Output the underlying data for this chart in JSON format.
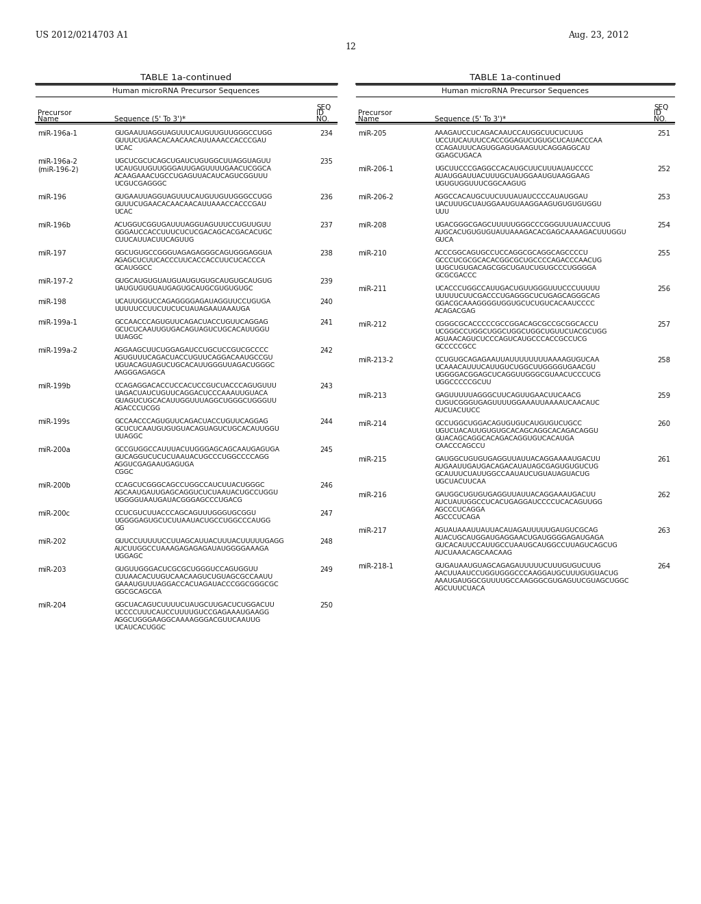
{
  "bg_color": "#ffffff",
  "page_header_left": "US 2012/0214703 A1",
  "page_header_right": "Aug. 23, 2012",
  "page_number": "12",
  "table_title": "TABLE 1a-continued",
  "subtitle": "Human microRNA Precursor Sequences",
  "left_entries": [
    {
      "name": [
        "miR-196a-1"
      ],
      "seq": [
        "GUGAAUUAGGUAGUUUCAUGUUGUUGGGCCUGG",
        "GUUUCUGAACACAACAACAUUAAACCACCCGAU",
        "UCAC"
      ],
      "seqno": "234"
    },
    {
      "name": [
        "miR-196a-2",
        "(miR-196-2)"
      ],
      "seq": [
        "UGCUCGCUCAGCUGAUCUGUGGCUUAGGUAGUU",
        "UCAUGUUGUUGGGAUUGAGUUUUGAACUCGGCA",
        "ACAAGAAACUGCCUGAGUUACAUCAGUCGGUUU",
        "UCGUCGAGGGC"
      ],
      "seqno": "235"
    },
    {
      "name": [
        "miR-196"
      ],
      "seq": [
        "GUGAAUUAGGUAGUUUCAUGUUGUUGGGCCUGG",
        "GUUUCUGAACACAACAACAUUAAACCACCCGAU",
        "UCAC"
      ],
      "seqno": "236"
    },
    {
      "name": [
        "miR-196b"
      ],
      "seq": [
        "ACUGGUCGGUGAUUUAGGUAGUUUCCUGUUGUU",
        "GGGAUCCACCUUUCUCUCGACAGCACGACACUGC",
        "CUUCAUUACUUCAGUUG"
      ],
      "seqno": "237"
    },
    {
      "name": [
        "miR-197"
      ],
      "seq": [
        "GGCUGUGCCGGGUAGAGAGGGCAGUGGGAGGUA",
        "AGAGCUCUUCACCCUUCACCACCUUCUCACCCA",
        "GCAUGGCC"
      ],
      "seqno": "238"
    },
    {
      "name": [
        "miR-197-2"
      ],
      "seq": [
        "GUGCAUGUGUAUGUAUGUGUGCAUGUGCAUGUG",
        "UAUGUGUGUAUGAGUGCAUGCGUGUGUGC"
      ],
      "seqno": "239"
    },
    {
      "name": [
        "miR-198"
      ],
      "seq": [
        "UCAUUGGUCCAGAGGGGAGAUAGGUUCCUGUGA",
        "UUUUUCCUUCUUCUCUAUAGAAUAAAUGA"
      ],
      "seqno": "240"
    },
    {
      "name": [
        "miR-199a-1"
      ],
      "seq": [
        "GCCAACCCAGUGUUCAGACUACCUGUUCAGGAG",
        "GCUCUCAAUUGUGACAGUAGUCUGCACAUUGGU",
        "UUAGGC"
      ],
      "seqno": "241"
    },
    {
      "name": [
        "miR-199a-2"
      ],
      "seq": [
        "AGGAAGCUUCUGGAGAUCCUGCUCCGUCGCCCC",
        "AGUGUUUCAGACUACCUGUUCAGGACAAUGCCGU",
        "UGUACAGUAGUCUGCACAUUGGGUUAGACUGGGC",
        "AAGGGAGAGCA"
      ],
      "seqno": "242"
    },
    {
      "name": [
        "miR-199b"
      ],
      "seq": [
        "CCAGAGGACACCUCCACUCCGUCUACCCAGUGUUU",
        "UAGACUAUCUGUUCAGGACUCCCAAAUUGUACA",
        "GUAGUCUGCACAUUGGUUUAGGCUGGGCUGGGUU",
        "AGACCCUCGG"
      ],
      "seqno": "243"
    },
    {
      "name": [
        "miR-199s"
      ],
      "seq": [
        "GCCAACCCAGUGUUCAGACUACCUGUUCAGGAG",
        "GCUCUCAAUGUGUGUACAGUAGUCUGCACAUUGGU",
        "UUAGGC"
      ],
      "seqno": "244"
    },
    {
      "name": [
        "miR-200a"
      ],
      "seq": [
        "GCCGUGGCCAUUUACUUGGGAGCAGCAAUGAGUGA",
        "GUCAGGUCUCUCUAAUACUGCCCUGGCCCCAGG",
        "AGGUCGAGAAUGAGUGA",
        "CGGC"
      ],
      "seqno": "245"
    },
    {
      "name": [
        "miR-200b"
      ],
      "seq": [
        "CCAGCUCGGGCAGCCUGGCCAUCUUACUGGGC",
        "AGCAAUGAUUGAGCAGGUCUCUAAUACUGCCUGGU",
        "UGGGGUAAUGAUACGGGAGCCCUGACG"
      ],
      "seqno": "246"
    },
    {
      "name": [
        "miR-200c"
      ],
      "seq": [
        "CCUCGUCUUACCCAGCAGUUUGGGUGCGGU",
        "UGGGGAGUGCUCUUAAUACUGCCUGGCCCAUGG",
        "GG"
      ],
      "seqno": "247"
    },
    {
      "name": [
        "miR-202"
      ],
      "seq": [
        "GUUCCUUUUUCCUUAGCAUUACUUUACUUUUUGAGG",
        "AUCUUGGCCUAAAGAGAGAGAUAUGGGGAAAGA",
        "UGGAGC"
      ],
      "seqno": "248"
    },
    {
      "name": [
        "miR-203"
      ],
      "seq": [
        "GUGUUGGGACUCGCGCUGGGUCCAGUGGUU",
        "CUUAACACUUGUCAACAAGUCUGUAGCGCCAAUU",
        "GAAAUGUUUAGGACCACUAGAUACCCGGCGGGCGC",
        "GGCGCAGCGA"
      ],
      "seqno": "249"
    },
    {
      "name": [
        "miR-204"
      ],
      "seq": [
        "GGCUACAGUCUUUUCUAUGCUUGACUCUGGACUU",
        "UCCCCUUUCAUCCUUUUGUCCGAGAAAUGAAGG",
        "AGGCUGGGAAGGCAAAAGGGACGUUCAAUUG",
        "UCAUCACUGGC"
      ],
      "seqno": "250"
    }
  ],
  "right_entries": [
    {
      "name": [
        "miR-205"
      ],
      "seq": [
        "AAAGAUCCUCAGACAAUCCAUGGCUUCUCUUG",
        "UCCUUCAUUUCCACCGGAGUCUGUGCUCAUACCCAA",
        "CCAGAUUUCAGUGGAGUGAAGUUCAGGAGGCAU",
        "GGAGCUGACA"
      ],
      "seqno": "251"
    },
    {
      "name": [
        "miR-206-1"
      ],
      "seq": [
        "UGCUUCCCGAGGCCACAUGCUUCUUUAUAUCCCC",
        "AUAUGGAUUACUUUGCUAUGGAAUGUAAGGAAG",
        "UGUGUGGUUUCGGCAAGUG"
      ],
      "seqno": "252"
    },
    {
      "name": [
        "miR-206-2"
      ],
      "seq": [
        "AGGCCACAUGCUUCUUUAUAUCCCCAUAUGGAU",
        "UACUUUGCUAUGGAAUGUAAGGAAGUGUGUGUGGU",
        "UUU"
      ],
      "seqno": "253"
    },
    {
      "name": [
        "miR-208"
      ],
      "seq": [
        "UGACGGGCGAGCUUUUUGGGCCCGGGUUUAUACCUUG",
        "AUGCACUGUGUGUAUUAAAGACACGAGCAAAAGACUUUGGU",
        "GUCA"
      ],
      "seqno": "254"
    },
    {
      "name": [
        "miR-210"
      ],
      "seq": [
        "ACCCGGCAGUGCCUCCAGGCGCAGGCAGCCCCU",
        "GCCCUCGCGCACACGGCGCUGCCCCAGACCCAACUG",
        "UUGCUGUGACAGCGGCUGAUCUGUGCCCUGGGGA",
        "GCGCGACCC"
      ],
      "seqno": "255"
    },
    {
      "name": [
        "miR-211"
      ],
      "seq": [
        "UCACCCUGGCCAUUGACUGUUGGGUUUCCCUUUUU",
        "UUUUUCUUCGACCCUGAGGGCUCUGAGCAGGGCAG",
        "GGACGCAAAGGGGUGGUGCUCUGUCACAAUCCCC",
        "ACAGACGAG"
      ],
      "seqno": "256"
    },
    {
      "name": [
        "miR-212"
      ],
      "seq": [
        "CGGGCGCACCCCCGCCGGACAGCGCCGCGGCACCU",
        "UCGGGCCUGGCUGGCUGGCUGGCUGUUCUACGCUGG",
        "AGUAACAGUCUCCCAGUCAUGCCCACCGCCUCG",
        "GCCCCCGCC"
      ],
      "seqno": "257"
    },
    {
      "name": [
        "miR-213-2"
      ],
      "seq": [
        "CCUGUGCAGAGAAUUAUUUUUUUUAAAAGUGUCAA",
        "UCAAACAUUUCAUUGUCUGGCUUGGGGUGAACGU",
        "UGGGGACGGAGCUCAGGUUGGGCGUAACUCCCUCG",
        "UGGCCCCCGCUU"
      ],
      "seqno": "258"
    },
    {
      "name": [
        "miR-213"
      ],
      "seq": [
        "GAGUUUUUAGGGCUUCAGUUGAACUUCAACG",
        "CUGUCGGGUGAGUUUUGGAAAUUAAAAUCAACAUC",
        "AUCUACUUCC"
      ],
      "seqno": "259"
    },
    {
      "name": [
        "miR-214"
      ],
      "seq": [
        "GCCUGGCUGGACAGUGUGUCAUGUGUCUGCC",
        "UGUCUACAUUGUGUGCACAGCAGGCACAGACAGGU",
        "GUACAGCAGGCACAGACAGGUGUCACAUGA",
        "CAACCCAGCCU"
      ],
      "seqno": "260"
    },
    {
      "name": [
        "miR-215"
      ],
      "seq": [
        "GAUGGCUGUGUGAGGUUAUUACAGGAAAAUGACUU",
        "AUGAAUUGAUGACAGACAUAUAGCGAGUGUGUCUG",
        "GCAUUUCUAUUGGCCAAUAUCUGUAUAGUACUG",
        "UGCUACUUCAA"
      ],
      "seqno": "261"
    },
    {
      "name": [
        "miR-216"
      ],
      "seq": [
        "GAUGGCUGUGUGAGGUUAUUACAGGAAAUGACUU",
        "AUCUAUUGGCCUCACUGAGGAUCCCCUCACAGUUGG",
        "AGCCCUCAGGA",
        "AGCCCUCAGA"
      ],
      "seqno": "262"
    },
    {
      "name": [
        "miR-217"
      ],
      "seq": [
        "AGUAUAAAUUAUUACAUAGAUUUUUGAUGUCGCAG",
        "AUACUGCAUGGAUGAGGAACUGAUGGGGAGAUGAGA",
        "GUCACAUUCCAUUGCCUAAUGCAUGGCCUUAGUCAGCUG",
        "AUCUAAACAGCAACAAG"
      ],
      "seqno": "263"
    },
    {
      "name": [
        "miR-218-1"
      ],
      "seq": [
        "GUGAUAAUGUAGCAGAGAUUUUUCUUUGUGUCUUG",
        "AACUUAAUCCUGGUGGGCCCAAGGAUGCUUUGUGUACUG",
        "AAAUGAUGGCGUUUUGCCAAGGGCGUGAGUUCGUAGCUGGC",
        "AGCUUUCUACA"
      ],
      "seqno": "264"
    }
  ]
}
